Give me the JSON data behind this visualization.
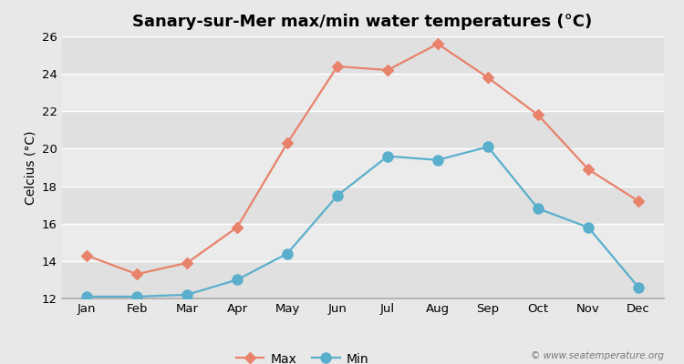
{
  "title": "Sanary-sur-Mer max/min water temperatures (°C)",
  "ylabel": "Celcius (°C)",
  "months": [
    "Jan",
    "Feb",
    "Mar",
    "Apr",
    "May",
    "Jun",
    "Jul",
    "Aug",
    "Sep",
    "Oct",
    "Nov",
    "Dec"
  ],
  "max_temps": [
    14.3,
    13.3,
    13.9,
    15.8,
    20.3,
    24.4,
    24.2,
    25.6,
    23.8,
    21.8,
    18.9,
    17.2
  ],
  "min_temps": [
    12.1,
    12.1,
    12.2,
    13.0,
    14.4,
    17.5,
    19.6,
    19.4,
    20.1,
    16.8,
    15.8,
    12.6
  ],
  "max_color": "#e8826a",
  "min_color": "#5aafcc",
  "bg_color": "#e8e8e8",
  "band_colors": [
    "#e0e0e0",
    "#ebebeb"
  ],
  "ylim": [
    12,
    26
  ],
  "yticks": [
    12,
    14,
    16,
    18,
    20,
    22,
    24,
    26
  ],
  "watermark": "© www.seatemperature.org",
  "title_fontsize": 13,
  "axis_label_fontsize": 10,
  "tick_fontsize": 9.5,
  "legend_fontsize": 10,
  "max_marker": "D",
  "min_marker": "o",
  "max_marker_size": 6,
  "min_marker_size": 8,
  "line_width": 1.6
}
